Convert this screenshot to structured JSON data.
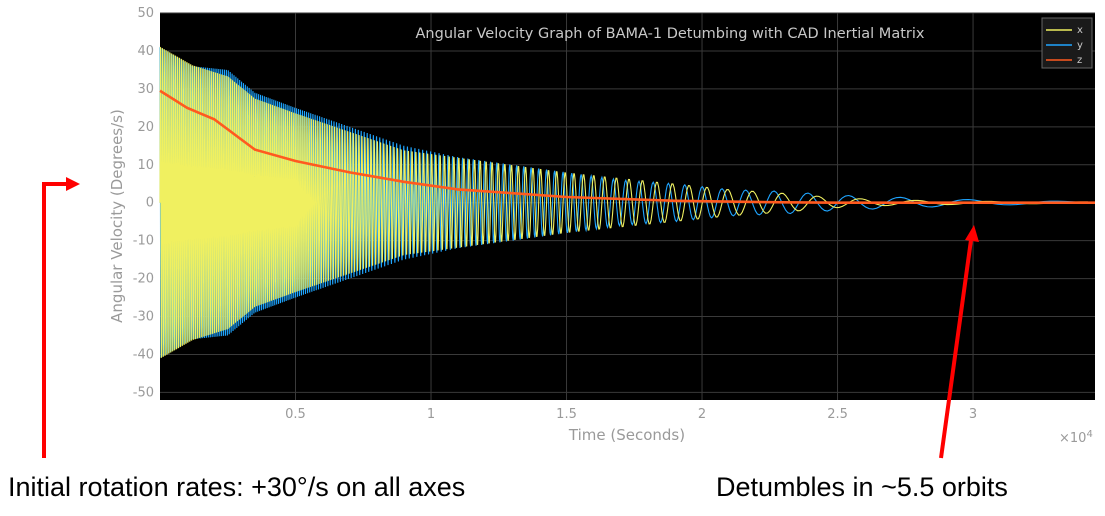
{
  "chart_data": {
    "type": "line",
    "title": "Angular Velocity Graph of BAMA-1 Detumbing with CAD Inertial Matrix",
    "xlabel": "Time (Seconds)",
    "ylabel": "Angular Velocity (Degrees/s)",
    "x_multiplier": "×10^4",
    "x_multiplier_base": "×10",
    "x_multiplier_exp": "4",
    "xlim": [
      0,
      34500
    ],
    "ylim": [
      -52,
      50
    ],
    "x_ticks": [
      5000,
      10000,
      15000,
      20000,
      25000,
      30000
    ],
    "x_tick_labels": [
      "0.5",
      "1",
      "1.5",
      "2",
      "2.5",
      "3"
    ],
    "y_ticks": [
      50,
      40,
      30,
      20,
      10,
      0,
      -10,
      -20,
      -30,
      -40,
      -50
    ],
    "y_tick_labels": [
      "50",
      "40",
      "30",
      "20",
      "10",
      "0",
      "-10",
      "-20",
      "-30",
      "-40",
      "-50"
    ],
    "grid": true,
    "legend_position": "top-right",
    "background_color": "#000000",
    "series": [
      {
        "name": "x",
        "color": "#f0f060",
        "style": "damped-oscillation",
        "envelope": [
          [
            0,
            42
          ],
          [
            1200,
            37
          ],
          [
            2500,
            34
          ],
          [
            3500,
            28
          ],
          [
            5000,
            24
          ],
          [
            7000,
            19
          ],
          [
            9000,
            14
          ],
          [
            11000,
            12
          ],
          [
            13000,
            10
          ],
          [
            15000,
            8
          ],
          [
            17000,
            6.5
          ],
          [
            19000,
            5
          ],
          [
            21000,
            3.5
          ],
          [
            23000,
            2.5
          ],
          [
            25000,
            1.3
          ],
          [
            27000,
            0.7
          ],
          [
            29000,
            0.5
          ],
          [
            31000,
            0.3
          ],
          [
            34500,
            0.2
          ]
        ]
      },
      {
        "name": "y",
        "color": "#1fa5ff",
        "style": "damped-oscillation",
        "envelope": [
          [
            0,
            41
          ],
          [
            1200,
            36
          ],
          [
            2500,
            35
          ],
          [
            3500,
            29
          ],
          [
            5000,
            25
          ],
          [
            7000,
            20
          ],
          [
            9000,
            15
          ],
          [
            11000,
            12
          ],
          [
            13000,
            10
          ],
          [
            15000,
            8
          ],
          [
            17000,
            6
          ],
          [
            19000,
            5
          ],
          [
            21000,
            3.5
          ],
          [
            23000,
            3
          ],
          [
            25000,
            2
          ],
          [
            27000,
            1.5
          ],
          [
            29000,
            1
          ],
          [
            31000,
            0.6
          ],
          [
            34500,
            0.3
          ]
        ]
      },
      {
        "name": "z",
        "color": "#ff5a1f",
        "style": "decay",
        "points": [
          [
            0,
            29.5
          ],
          [
            1000,
            25
          ],
          [
            2000,
            22
          ],
          [
            3500,
            14
          ],
          [
            5000,
            11
          ],
          [
            7000,
            8
          ],
          [
            9000,
            5.5
          ],
          [
            11000,
            3.5
          ],
          [
            13000,
            2.5
          ],
          [
            15000,
            1.5
          ],
          [
            17000,
            1
          ],
          [
            19000,
            0.5
          ],
          [
            21000,
            0.3
          ],
          [
            23000,
            0.1
          ],
          [
            25000,
            0
          ],
          [
            27000,
            0
          ],
          [
            30000,
            0
          ],
          [
            34500,
            0
          ]
        ]
      }
    ]
  },
  "annotations": {
    "left_caption": "Initial rotation rates: +30°/s on all axes",
    "right_caption": "Detumbles in ~5.5 orbits",
    "arrow_color": "#ff0000"
  }
}
